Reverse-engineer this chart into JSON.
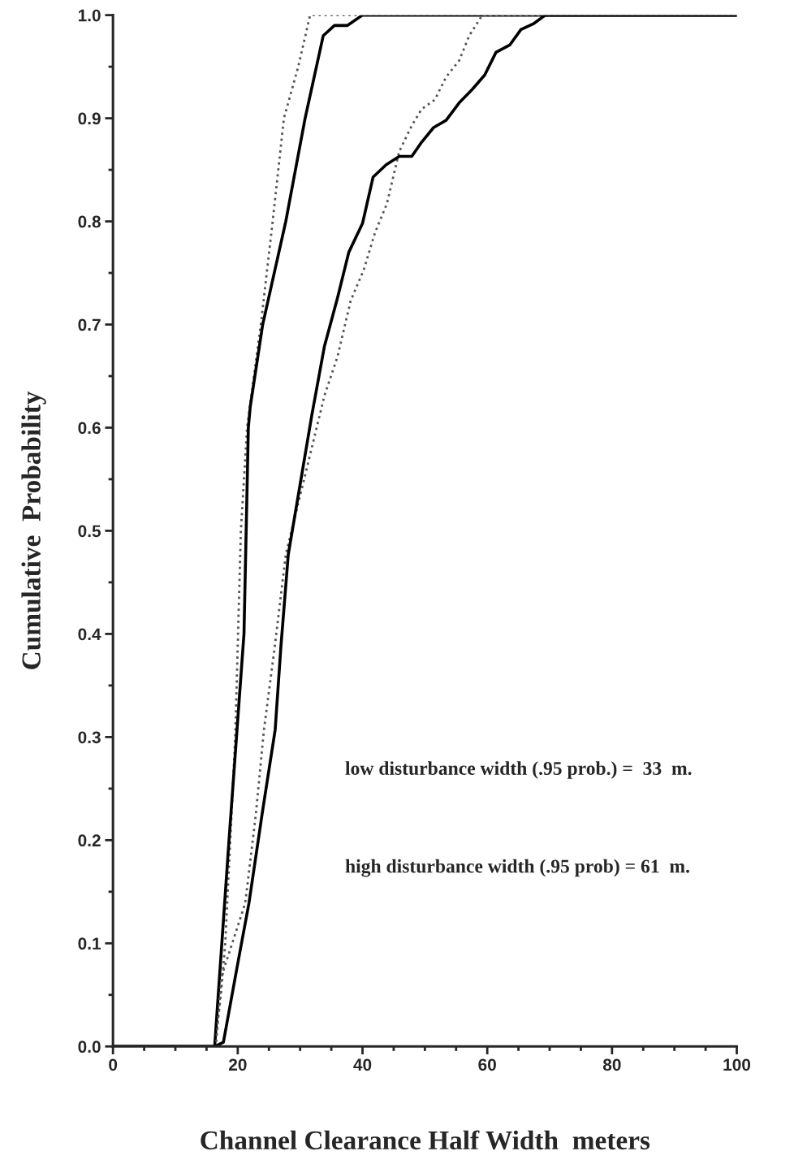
{
  "chart_data": {
    "type": "line",
    "xlabel": "Channel Clearance Half Width  meters",
    "ylabel": "Cumulative  Probability",
    "xlim": [
      0,
      100
    ],
    "ylim": [
      0,
      1.0
    ],
    "xticks": [
      0,
      20,
      40,
      60,
      80,
      100
    ],
    "yticks": [
      {
        "value": 0,
        "label": "0.0"
      },
      {
        "value": 0.1,
        "label": "0.1"
      },
      {
        "value": 0.2,
        "label": "0.2"
      },
      {
        "value": 0.3,
        "label": "0.3"
      },
      {
        "value": 0.4,
        "label": "0.4"
      },
      {
        "value": 0.5,
        "label": "0.5"
      },
      {
        "value": 0.6,
        "label": "0.6"
      },
      {
        "value": 0.7,
        "label": "0.7"
      },
      {
        "value": 0.8,
        "label": "0.8"
      },
      {
        "value": 0.9,
        "label": "0.9"
      },
      {
        "value": 1.0,
        "label": "1.0"
      }
    ],
    "grid": false,
    "legend": false,
    "marker": "none",
    "annotations": [
      "low disturbance width (.95 prob.) =  33  m.",
      "high disturbance width (.95 prob) = 61  m."
    ],
    "series": [
      {
        "color": "#555555",
        "line_style": "dotted",
        "x": [
          0,
          16.3,
          17.3,
          18,
          19.6,
          20.5,
          21.5,
          23.7,
          25.6,
          27.4,
          29.7,
          31.6,
          100
        ],
        "values": [
          0,
          0,
          0.05,
          0.1,
          0.3,
          0.5,
          0.6,
          0.7,
          0.8,
          0.9,
          0.95,
          1.0,
          1.0
        ]
      },
      {
        "color": "#000000",
        "line_style": "solid",
        "x": [
          0,
          16.3,
          18.6,
          21,
          21.7,
          22,
          24,
          27.7,
          30.8,
          33.7,
          35.5,
          37.6,
          40,
          100
        ],
        "values": [
          0,
          0,
          0.2,
          0.4,
          0.6,
          0.62,
          0.7,
          0.8,
          0.9,
          0.98,
          0.99,
          0.99,
          1.0,
          1.0
        ]
      },
      {
        "color": "#555555",
        "line_style": "dotted",
        "x": [
          0,
          16.5,
          17.4,
          21.2,
          22.9,
          24.2,
          25.9,
          27.7,
          33.9,
          36,
          38.1,
          40.2,
          42,
          43.9,
          45.9,
          47.9,
          49.5,
          51.6,
          53.4,
          55.5,
          57.1,
          59.2,
          100
        ],
        "values": [
          0,
          0,
          0.068,
          0.139,
          0.225,
          0.307,
          0.386,
          0.477,
          0.631,
          0.669,
          0.723,
          0.753,
          0.789,
          0.817,
          0.868,
          0.893,
          0.909,
          0.918,
          0.94,
          0.956,
          0.98,
          1.0,
          1.0
        ]
      },
      {
        "color": "#000000",
        "line_style": "solid",
        "x": [
          0,
          16.3,
          17.7,
          19.9,
          21.8,
          23.9,
          26,
          26.9,
          28.1,
          31.9,
          33.9,
          36,
          37.8,
          40,
          41.7,
          43.8,
          45.9,
          47.9,
          49.5,
          51.4,
          53.4,
          55.5,
          57.6,
          59.6,
          61.4,
          63.6,
          65.4,
          67.5,
          69.3,
          100
        ],
        "values": [
          0,
          0,
          0.004,
          0.077,
          0.139,
          0.225,
          0.307,
          0.386,
          0.477,
          0.613,
          0.679,
          0.726,
          0.77,
          0.798,
          0.843,
          0.855,
          0.863,
          0.863,
          0.877,
          0.891,
          0.898,
          0.915,
          0.928,
          0.942,
          0.964,
          0.971,
          0.986,
          0.992,
          1.0,
          1.0
        ]
      }
    ]
  }
}
